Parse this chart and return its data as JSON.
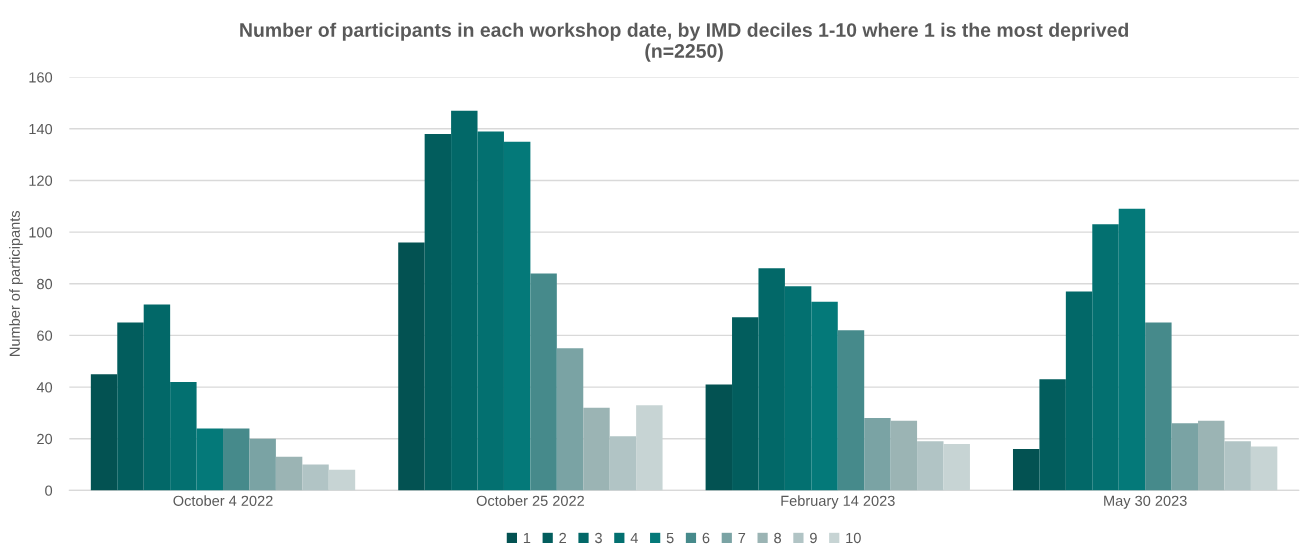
{
  "chart_data": {
    "type": "bar",
    "title": "Number of participants in each workshop date, by IMD deciles 1-10 where 1 is the most deprived\n(n=2250)",
    "ylabel": "Number of participants",
    "categories": [
      "October 4 2022",
      "October 25 2022",
      "February 14 2023",
      "May 30 2023"
    ],
    "series": [
      {
        "name": "1",
        "color": "#035252",
        "values": [
          45,
          96,
          41,
          16
        ]
      },
      {
        "name": "2",
        "color": "#025d5d",
        "values": [
          65,
          138,
          67,
          43
        ]
      },
      {
        "name": "3",
        "color": "#026868",
        "values": [
          72,
          147,
          86,
          77
        ]
      },
      {
        "name": "4",
        "color": "#037070",
        "values": [
          42,
          139,
          79,
          103
        ]
      },
      {
        "name": "5",
        "color": "#047979",
        "values": [
          24,
          135,
          73,
          109
        ]
      },
      {
        "name": "6",
        "color": "#468a8b",
        "values": [
          24,
          84,
          62,
          65
        ]
      },
      {
        "name": "7",
        "color": "#7aa3a4",
        "values": [
          20,
          55,
          28,
          26
        ]
      },
      {
        "name": "8",
        "color": "#9bb4b4",
        "values": [
          13,
          32,
          27,
          27
        ]
      },
      {
        "name": "9",
        "color": "#b1c4c5",
        "values": [
          10,
          21,
          19,
          19
        ]
      },
      {
        "name": "10",
        "color": "#c7d4d4",
        "values": [
          8,
          33,
          18,
          17
        ]
      }
    ],
    "ylim": [
      0,
      160
    ],
    "yticks": [
      0,
      20,
      40,
      60,
      80,
      100,
      120,
      140,
      160
    ],
    "grid": "y",
    "legend": "bottom"
  }
}
